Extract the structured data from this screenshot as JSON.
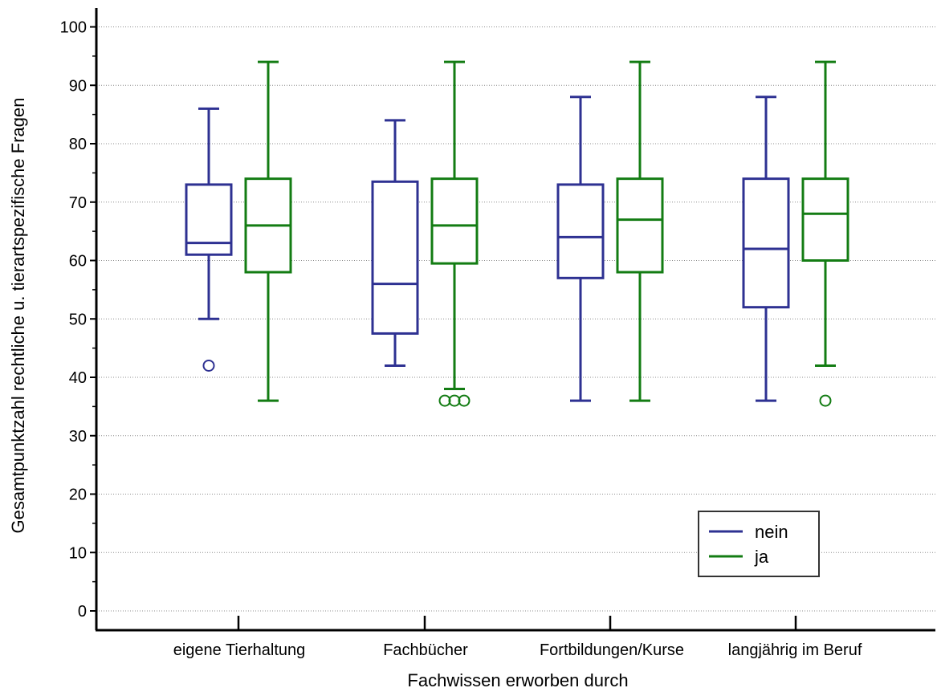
{
  "chart_data": {
    "type": "boxplot",
    "xlabel": "Fachwissen erworben durch",
    "ylabel": "Gesamtpunktzahl rechtliche u. tierartspezifische Fragen",
    "ylim": [
      0,
      100
    ],
    "yticks": [
      0,
      10,
      20,
      30,
      40,
      50,
      60,
      70,
      80,
      90,
      100
    ],
    "grid": "horizontal dotted",
    "legend_position": "bottom-right",
    "categories": [
      "eigene Tierhaltung",
      "Fachbücher",
      "Fortbildungen/Kurse",
      "langjährig im Beruf"
    ],
    "series": [
      {
        "name": "nein",
        "color": "#2e3192",
        "boxes": [
          {
            "whisker_low": 50,
            "q1": 61,
            "median": 63,
            "q3": 73,
            "whisker_high": 86,
            "outliers": [
              42
            ]
          },
          {
            "whisker_low": 42,
            "q1": 47.5,
            "median": 56,
            "q3": 73.5,
            "whisker_high": 84,
            "outliers": []
          },
          {
            "whisker_low": 36,
            "q1": 57,
            "median": 64,
            "q3": 73,
            "whisker_high": 88,
            "outliers": []
          },
          {
            "whisker_low": 36,
            "q1": 52,
            "median": 62,
            "q3": 74,
            "whisker_high": 88,
            "outliers": []
          }
        ]
      },
      {
        "name": "ja",
        "color": "#137c13",
        "boxes": [
          {
            "whisker_low": 36,
            "q1": 58,
            "median": 66,
            "q3": 74,
            "whisker_high": 94,
            "outliers": []
          },
          {
            "whisker_low": 38,
            "q1": 59.5,
            "median": 66,
            "q3": 74,
            "whisker_high": 94,
            "outliers": [
              36,
              36,
              36
            ]
          },
          {
            "whisker_low": 36,
            "q1": 58,
            "median": 67,
            "q3": 74,
            "whisker_high": 94,
            "outliers": []
          },
          {
            "whisker_low": 42,
            "q1": 60,
            "median": 68,
            "q3": 74,
            "whisker_high": 94,
            "outliers": [
              36
            ]
          }
        ]
      }
    ]
  }
}
